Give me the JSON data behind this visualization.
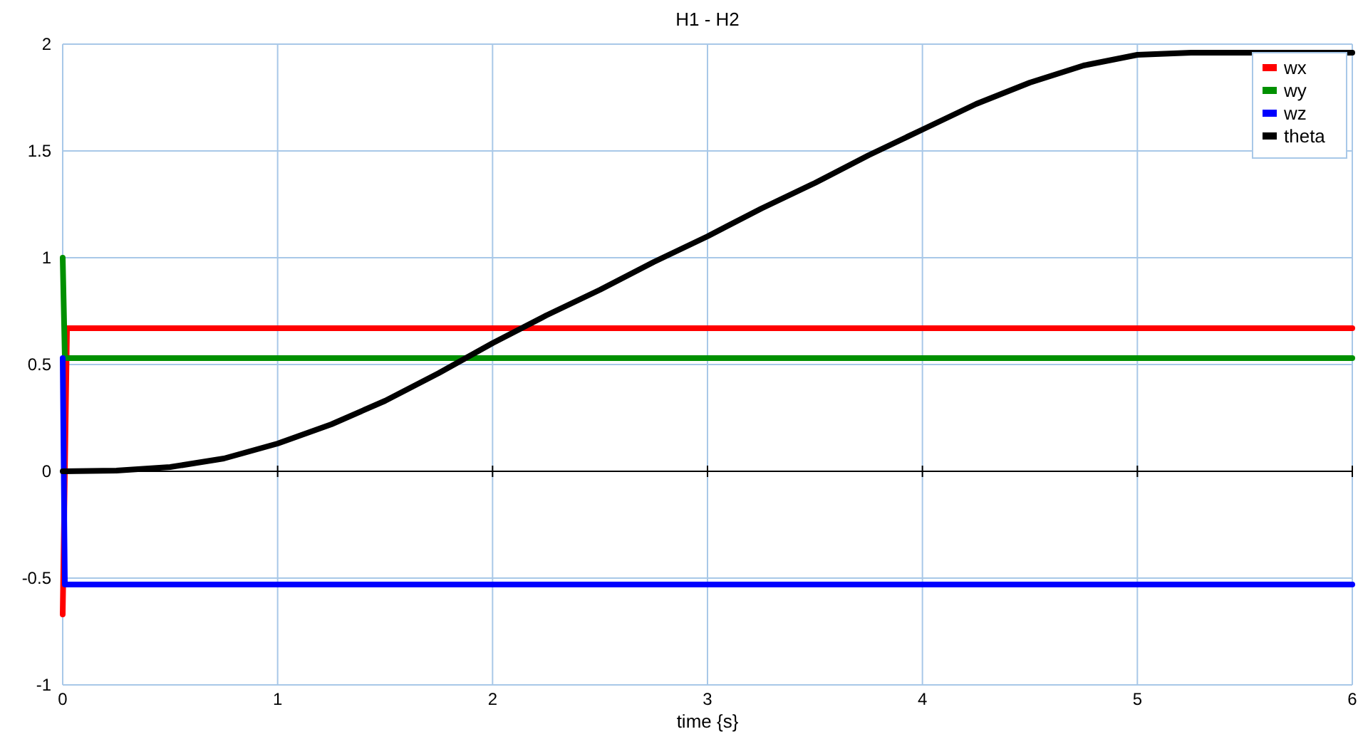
{
  "chart_data": {
    "type": "line",
    "title": "H1 - H2",
    "xlabel": "time {s}",
    "xlim": [
      0,
      6
    ],
    "xticks": [
      0,
      1,
      2,
      3,
      4,
      5,
      6
    ],
    "ylim": [
      -1,
      2
    ],
    "yticks": [
      -1,
      -0.5,
      0,
      0.5,
      1,
      1.5,
      2
    ],
    "grid": true,
    "legend": "top right",
    "line_style": "solid",
    "marker": "none",
    "series": [
      {
        "name": "wx",
        "color": "#ff0000",
        "x": [
          0,
          0.02,
          6
        ],
        "values": [
          -0.67,
          0.67,
          0.67
        ]
      },
      {
        "name": "wy",
        "color": "#009000",
        "x": [
          0,
          0.01,
          6
        ],
        "values": [
          1,
          0.53,
          0.53
        ]
      },
      {
        "name": "wz",
        "color": "#0000ff",
        "x": [
          0,
          0.01,
          6
        ],
        "values": [
          0.53,
          -0.53,
          -0.53
        ]
      },
      {
        "name": "theta",
        "color": "#000000",
        "x": [
          0,
          0.25,
          0.5,
          0.75,
          1,
          1.25,
          1.5,
          1.75,
          2,
          2.25,
          2.5,
          2.75,
          3,
          3.25,
          3.5,
          3.75,
          4,
          4.25,
          4.5,
          4.75,
          5,
          5.25,
          5.5,
          6
        ],
        "values": [
          0,
          0.003,
          0.02,
          0.06,
          0.13,
          0.22,
          0.33,
          0.46,
          0.6,
          0.73,
          0.85,
          0.98,
          1.1,
          1.23,
          1.35,
          1.48,
          1.6,
          1.72,
          1.82,
          1.9,
          1.95,
          1.96,
          1.96,
          1.96
        ]
      }
    ]
  }
}
